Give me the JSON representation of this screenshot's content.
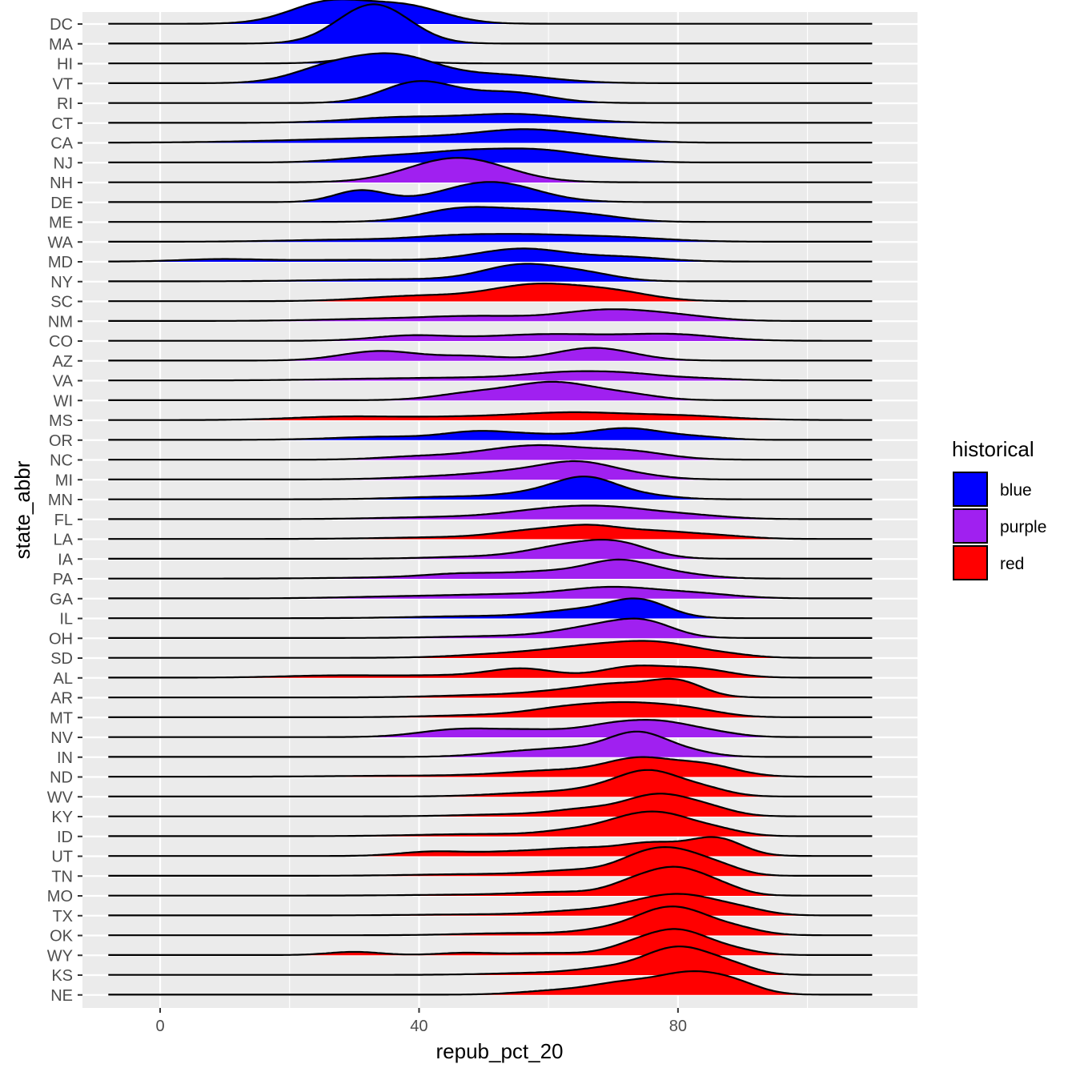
{
  "chart_data": {
    "type": "ridgeline",
    "xlabel": "repub_pct_20",
    "ylabel": "state_abbr",
    "xlim": [
      -12,
      117
    ],
    "x_ticks": [
      0,
      40,
      80
    ],
    "x_curve_range": [
      -8,
      110
    ],
    "grid": true,
    "legend": {
      "title": "historical",
      "placement": "right",
      "entries": [
        {
          "name": "blue",
          "color": "#0000ff"
        },
        {
          "name": "purple",
          "color": "#a020f0"
        },
        {
          "name": "red",
          "color": "#ff0000"
        }
      ]
    },
    "colors": {
      "blue": "#0000ff",
      "purple": "#a020f0",
      "red": "#ff0000"
    },
    "states": [
      {
        "abbr": "DC",
        "historical": "blue",
        "peaks": [
          [
            26,
            6,
            1.0
          ],
          [
            38,
            6,
            0.8
          ]
        ]
      },
      {
        "abbr": "MA",
        "historical": "blue",
        "peaks": [
          [
            33,
            5.5,
            1.85
          ]
        ]
      },
      {
        "abbr": "HI",
        "historical": "blue",
        "peaks": [
          [
            33,
            5,
            0.3
          ]
        ]
      },
      {
        "abbr": "VT",
        "historical": "blue",
        "peaks": [
          [
            27,
            6,
            0.8
          ],
          [
            37,
            6,
            1.1
          ],
          [
            52,
            8,
            0.4
          ]
        ]
      },
      {
        "abbr": "RI",
        "historical": "blue",
        "peaks": [
          [
            40,
            5.5,
            1.0
          ],
          [
            54,
            6,
            0.5
          ]
        ]
      },
      {
        "abbr": "CT",
        "historical": "blue",
        "peaks": [
          [
            37,
            8,
            0.25
          ],
          [
            55,
            8,
            0.4
          ]
        ]
      },
      {
        "abbr": "CA",
        "historical": "blue",
        "peaks": [
          [
            25,
            12,
            0.1
          ],
          [
            45,
            12,
            0.25
          ],
          [
            57,
            7,
            0.45
          ],
          [
            68,
            6,
            0.15
          ]
        ]
      },
      {
        "abbr": "NJ",
        "historical": "blue",
        "peaks": [
          [
            33,
            6,
            0.2
          ],
          [
            48,
            8,
            0.55
          ],
          [
            60,
            6,
            0.4
          ],
          [
            70,
            5,
            0.1
          ]
        ]
      },
      {
        "abbr": "NH",
        "historical": "purple",
        "peaks": [
          [
            46,
            7.5,
            1.15
          ]
        ]
      },
      {
        "abbr": "DE",
        "historical": "blue",
        "peaks": [
          [
            31,
            4,
            0.55
          ],
          [
            51,
            7,
            0.95
          ]
        ]
      },
      {
        "abbr": "ME",
        "historical": "blue",
        "peaks": [
          [
            46,
            6,
            0.55
          ],
          [
            58,
            7,
            0.5
          ],
          [
            68,
            5,
            0.15
          ]
        ]
      },
      {
        "abbr": "WA",
        "historical": "blue",
        "peaks": [
          [
            30,
            10,
            0.1
          ],
          [
            44,
            6,
            0.15
          ],
          [
            55,
            8,
            0.3
          ],
          [
            70,
            8,
            0.2
          ]
        ]
      },
      {
        "abbr": "MD",
        "historical": "blue",
        "peaks": [
          [
            9,
            6,
            0.1
          ],
          [
            30,
            12,
            0.08
          ],
          [
            56,
            7,
            0.6
          ],
          [
            72,
            6,
            0.2
          ]
        ]
      },
      {
        "abbr": "NY",
        "historical": "blue",
        "peaks": [
          [
            38,
            12,
            0.1
          ],
          [
            56,
            6,
            0.75
          ],
          [
            66,
            5,
            0.3
          ]
        ]
      },
      {
        "abbr": "SC",
        "historical": "red",
        "peaks": [
          [
            40,
            8,
            0.25
          ],
          [
            58,
            7,
            0.75
          ],
          [
            70,
            6,
            0.4
          ]
        ]
      },
      {
        "abbr": "NM",
        "historical": "purple",
        "peaks": [
          [
            35,
            10,
            0.1
          ],
          [
            50,
            8,
            0.2
          ],
          [
            69,
            7,
            0.5
          ],
          [
            80,
            6,
            0.2
          ]
        ]
      },
      {
        "abbr": "CO",
        "historical": "purple",
        "peaks": [
          [
            39,
            6,
            0.25
          ],
          [
            55,
            7,
            0.2
          ],
          [
            65,
            7,
            0.2
          ],
          [
            79,
            7,
            0.3
          ]
        ]
      },
      {
        "abbr": "AZ",
        "historical": "purple",
        "peaks": [
          [
            34,
            6,
            0.45
          ],
          [
            48,
            5,
            0.2
          ],
          [
            67,
            6,
            0.6
          ]
        ]
      },
      {
        "abbr": "VA",
        "historical": "purple",
        "peaks": [
          [
            35,
            10,
            0.08
          ],
          [
            50,
            8,
            0.1
          ],
          [
            62,
            6,
            0.3
          ],
          [
            72,
            6,
            0.3
          ],
          [
            84,
            5,
            0.08
          ]
        ]
      },
      {
        "abbr": "WI",
        "historical": "purple",
        "peaks": [
          [
            49,
            6,
            0.35
          ],
          [
            61,
            6,
            0.8
          ],
          [
            72,
            5,
            0.25
          ]
        ]
      },
      {
        "abbr": "MS",
        "historical": "red",
        "peaks": [
          [
            28,
            8,
            0.15
          ],
          [
            48,
            10,
            0.15
          ],
          [
            64,
            8,
            0.3
          ],
          [
            80,
            8,
            0.2
          ]
        ]
      },
      {
        "abbr": "OR",
        "historical": "blue",
        "peaks": [
          [
            35,
            8,
            0.15
          ],
          [
            49,
            5,
            0.35
          ],
          [
            58,
            5,
            0.2
          ],
          [
            72,
            6,
            0.55
          ],
          [
            84,
            4,
            0.1
          ]
        ]
      },
      {
        "abbr": "NC",
        "historical": "purple",
        "peaks": [
          [
            40,
            6,
            0.15
          ],
          [
            52,
            6,
            0.3
          ],
          [
            60,
            6,
            0.5
          ],
          [
            72,
            6,
            0.4
          ]
        ]
      },
      {
        "abbr": "MI",
        "historical": "purple",
        "peaks": [
          [
            45,
            8,
            0.15
          ],
          [
            58,
            7,
            0.4
          ],
          [
            65,
            5,
            0.55
          ],
          [
            73,
            5,
            0.2
          ]
        ]
      },
      {
        "abbr": "MN",
        "historical": "blue",
        "peaks": [
          [
            45,
            8,
            0.12
          ],
          [
            60,
            6,
            0.35
          ],
          [
            66,
            4.5,
            0.8
          ],
          [
            74,
            5,
            0.2
          ]
        ]
      },
      {
        "abbr": "FL",
        "historical": "purple",
        "peaks": [
          [
            45,
            10,
            0.1
          ],
          [
            60,
            7,
            0.35
          ],
          [
            70,
            7,
            0.45
          ],
          [
            82,
            6,
            0.15
          ]
        ]
      },
      {
        "abbr": "LA",
        "historical": "red",
        "peaks": [
          [
            45,
            10,
            0.08
          ],
          [
            58,
            6,
            0.35
          ],
          [
            67,
            5,
            0.5
          ],
          [
            77,
            5,
            0.3
          ],
          [
            86,
            5,
            0.15
          ]
        ]
      },
      {
        "abbr": "IA",
        "historical": "purple",
        "peaks": [
          [
            50,
            8,
            0.1
          ],
          [
            63,
            6,
            0.55
          ],
          [
            71,
            5,
            0.6
          ]
        ]
      },
      {
        "abbr": "PA",
        "historical": "purple",
        "peaks": [
          [
            37,
            10,
            0.05
          ],
          [
            47,
            6,
            0.2
          ],
          [
            60,
            6,
            0.3
          ],
          [
            71,
            5,
            0.8
          ],
          [
            80,
            5,
            0.2
          ]
        ]
      },
      {
        "abbr": "GA",
        "historical": "purple",
        "peaks": [
          [
            40,
            10,
            0.1
          ],
          [
            55,
            8,
            0.15
          ],
          [
            70,
            7,
            0.5
          ],
          [
            83,
            6,
            0.2
          ]
        ]
      },
      {
        "abbr": "IL",
        "historical": "blue",
        "peaks": [
          [
            50,
            10,
            0.1
          ],
          [
            65,
            6,
            0.35
          ],
          [
            74,
            4.5,
            0.8
          ]
        ]
      },
      {
        "abbr": "OH",
        "historical": "purple",
        "peaks": [
          [
            55,
            10,
            0.1
          ],
          [
            68,
            6,
            0.5
          ],
          [
            75,
            4.5,
            0.6
          ]
        ]
      },
      {
        "abbr": "SD",
        "historical": "red",
        "peaks": [
          [
            55,
            8,
            0.2
          ],
          [
            68,
            7,
            0.5
          ],
          [
            78,
            6,
            0.55
          ],
          [
            88,
            4,
            0.1
          ]
        ]
      },
      {
        "abbr": "AL",
        "historical": "red",
        "peaks": [
          [
            27,
            8,
            0.1
          ],
          [
            45,
            8,
            0.1
          ],
          [
            56,
            5,
            0.4
          ],
          [
            73,
            5,
            0.5
          ],
          [
            83,
            5,
            0.4
          ]
        ]
      },
      {
        "abbr": "AR",
        "historical": "red",
        "peaks": [
          [
            50,
            8,
            0.1
          ],
          [
            65,
            7,
            0.35
          ],
          [
            72,
            5,
            0.4
          ],
          [
            80,
            4,
            0.7
          ]
        ]
      },
      {
        "abbr": "MT",
        "historical": "red",
        "peaks": [
          [
            50,
            8,
            0.1
          ],
          [
            63,
            6,
            0.4
          ],
          [
            73,
            6,
            0.55
          ],
          [
            82,
            5,
            0.3
          ]
        ]
      },
      {
        "abbr": "NV",
        "historical": "purple",
        "peaks": [
          [
            46,
            6,
            0.35
          ],
          [
            58,
            6,
            0.3
          ],
          [
            70,
            5,
            0.5
          ],
          [
            78,
            5,
            0.6
          ],
          [
            86,
            4,
            0.15
          ]
        ]
      },
      {
        "abbr": "IN",
        "historical": "purple",
        "peaks": [
          [
            55,
            6,
            0.2
          ],
          [
            65,
            6,
            0.35
          ],
          [
            74,
            4.5,
            1.05
          ],
          [
            82,
            4,
            0.2
          ]
        ]
      },
      {
        "abbr": "ND",
        "historical": "red",
        "peaks": [
          [
            40,
            12,
            0.05
          ],
          [
            62,
            8,
            0.3
          ],
          [
            74,
            5,
            0.75
          ],
          [
            84,
            5,
            0.55
          ]
        ]
      },
      {
        "abbr": "WV",
        "historical": "red",
        "peaks": [
          [
            60,
            8,
            0.2
          ],
          [
            70,
            5,
            0.35
          ],
          [
            76,
            4.5,
            1.0
          ],
          [
            84,
            4,
            0.35
          ]
        ]
      },
      {
        "abbr": "KY",
        "historical": "red",
        "peaks": [
          [
            55,
            8,
            0.1
          ],
          [
            66,
            5,
            0.3
          ],
          [
            77,
            5,
            1.0
          ],
          [
            85,
            4,
            0.3
          ]
        ]
      },
      {
        "abbr": "ID",
        "historical": "red",
        "peaks": [
          [
            50,
            10,
            0.1
          ],
          [
            65,
            5,
            0.3
          ],
          [
            72,
            4,
            0.5
          ],
          [
            78,
            4.5,
            0.9
          ],
          [
            86,
            4,
            0.3
          ]
        ]
      },
      {
        "abbr": "UT",
        "historical": "red",
        "peaks": [
          [
            42,
            5,
            0.2
          ],
          [
            55,
            6,
            0.2
          ],
          [
            65,
            5,
            0.3
          ],
          [
            76,
            5,
            0.6
          ],
          [
            86,
            4,
            0.8
          ]
        ]
      },
      {
        "abbr": "TN",
        "historical": "red",
        "peaks": [
          [
            50,
            10,
            0.08
          ],
          [
            65,
            6,
            0.25
          ],
          [
            74,
            4,
            0.6
          ],
          [
            80,
            4.5,
            1.05
          ],
          [
            87,
            3.5,
            0.3
          ]
        ]
      },
      {
        "abbr": "MO",
        "historical": "red",
        "peaks": [
          [
            50,
            10,
            0.05
          ],
          [
            62,
            6,
            0.15
          ],
          [
            73,
            4,
            0.5
          ],
          [
            80,
            4.5,
            1.2
          ],
          [
            87,
            3.5,
            0.3
          ]
        ]
      },
      {
        "abbr": "TX",
        "historical": "red",
        "peaks": [
          [
            50,
            10,
            0.05
          ],
          [
            65,
            6,
            0.2
          ],
          [
            75,
            5,
            0.5
          ],
          [
            82,
            5,
            0.75
          ],
          [
            90,
            4,
            0.25
          ]
        ]
      },
      {
        "abbr": "OK",
        "historical": "red",
        "peaks": [
          [
            55,
            8,
            0.1
          ],
          [
            70,
            5,
            0.3
          ],
          [
            76,
            4,
            0.5
          ],
          [
            81,
            4.5,
            1.0
          ],
          [
            89,
            4,
            0.3
          ]
        ]
      },
      {
        "abbr": "WY",
        "historical": "red",
        "peaks": [
          [
            30,
            4,
            0.15
          ],
          [
            47,
            4,
            0.1
          ],
          [
            60,
            6,
            0.1
          ],
          [
            73,
            4,
            0.4
          ],
          [
            80,
            4.5,
            1.1
          ],
          [
            88,
            4,
            0.25
          ]
        ]
      },
      {
        "abbr": "KS",
        "historical": "red",
        "peaks": [
          [
            60,
            8,
            0.1
          ],
          [
            70,
            5,
            0.3
          ],
          [
            77,
            4,
            0.5
          ],
          [
            82,
            4.5,
            1.0
          ],
          [
            89,
            3.5,
            0.3
          ]
        ]
      },
      {
        "abbr": "NE",
        "historical": "red",
        "peaks": [
          [
            62,
            6,
            0.2
          ],
          [
            72,
            5,
            0.5
          ],
          [
            82,
            5,
            0.95
          ],
          [
            89,
            4,
            0.4
          ]
        ]
      }
    ]
  }
}
